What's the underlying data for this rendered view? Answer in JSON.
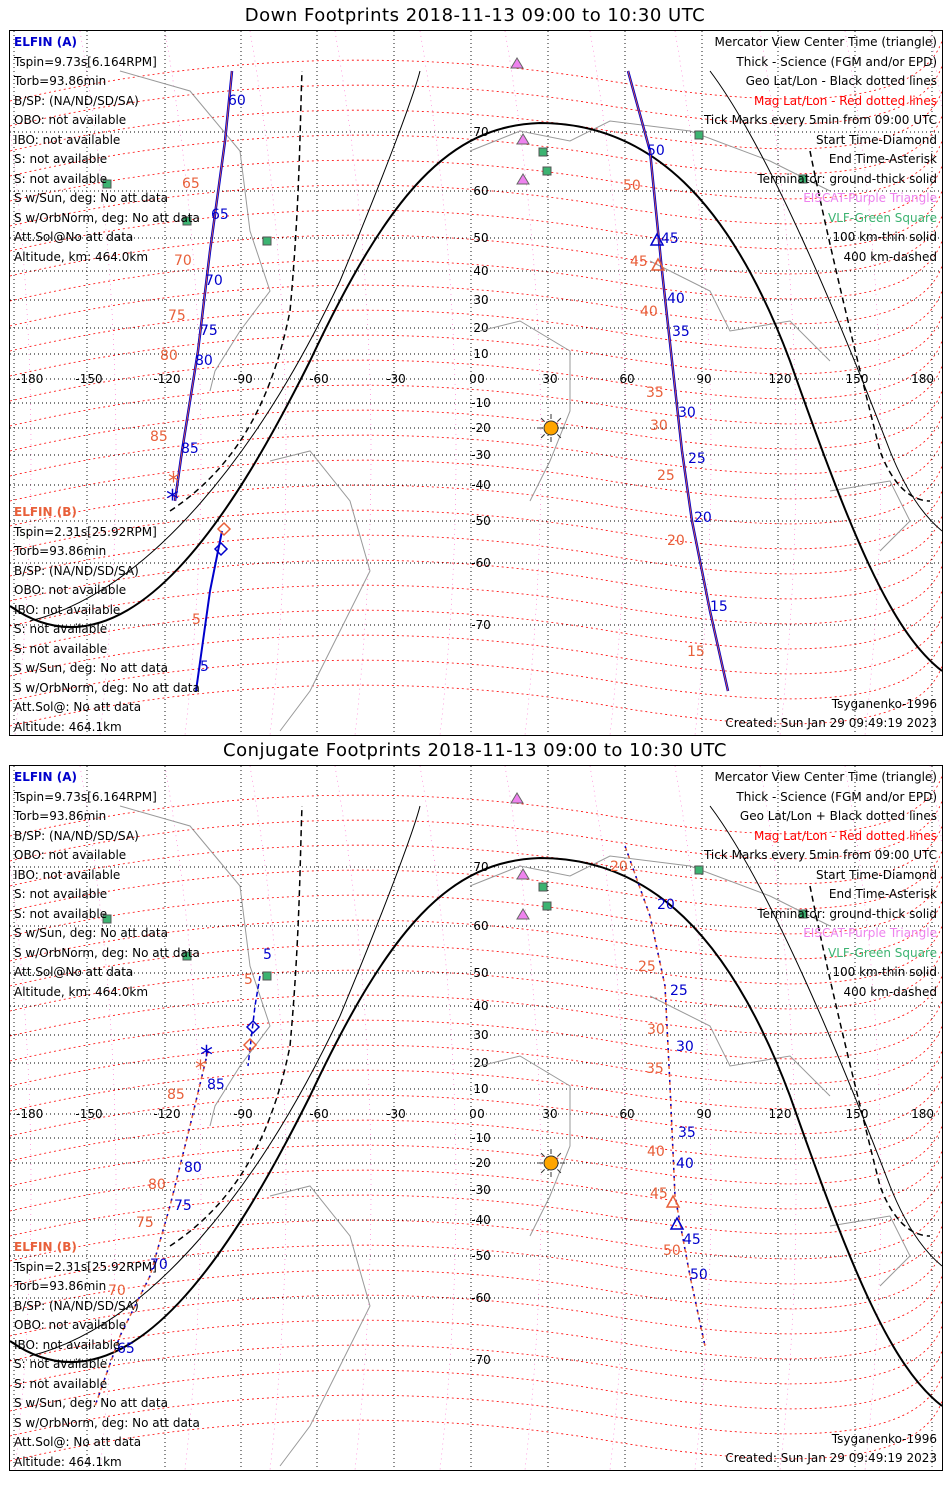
{
  "panels": [
    {
      "title": "Down Footprints 2018-11-13 09:00 to 10:30 UTC",
      "sc_a": {
        "name": "ELFIN (A)",
        "lines": [
          "Tspin=9.73s[6.164RPM]",
          "Torb=93.86min",
          "B/SP: (NA/ND/SD/SA)",
          "OBO: not available",
          "IBO: not available",
          "S: not available",
          "S: not available",
          "S w/Sun, deg: No att data",
          "S w/OrbNorm, deg: No att data",
          "Att.Sol@No att data",
          "Altitude, km: 464.0km"
        ]
      },
      "sc_b": {
        "name": "ELFIN (B)",
        "lines": [
          "Tspin=2.31s[25.92RPM]",
          "Torb=93.86min",
          "B/SP: (NA/ND/SD/SA)",
          "OBO: not available",
          "IBO: not available",
          "S: not available",
          "S: not available",
          "S w/Sun, deg: No att data",
          "S w/OrbNorm, deg: No att data",
          "Att.Sol@: No att data",
          "Altitude: 464.1km"
        ]
      },
      "tick_a_left": [
        "60",
        "65",
        "70",
        "75",
        "80",
        "85"
      ],
      "tick_b_left": [
        "65",
        "70",
        "75",
        "80",
        "85"
      ],
      "tick_a_right": [
        "50",
        "45",
        "40",
        "35",
        "30",
        "25",
        "20",
        "15"
      ],
      "tick_b_right": [
        "50",
        "45",
        "40",
        "35",
        "30",
        "25",
        "20",
        "15"
      ],
      "tick_b_extra": [
        "5"
      ],
      "tick_a_extra": [
        "5"
      ]
    },
    {
      "title": "Conjugate Footprints 2018-11-13 09:00 to 10:30 UTC",
      "sc_a": {
        "name": "ELFIN (A)",
        "lines": [
          "Tspin=9.73s[6.164RPM]",
          "Torb=93.86min",
          "B/SP: (NA/ND/SD/SA)",
          "OBO: not available",
          "IBO: not available",
          "S: not available",
          "S: not available",
          "S w/Sun, deg: No att data",
          "S w/OrbNorm, deg: No att data",
          "Att.Sol@No att data",
          "Altitude, km: 464.0km"
        ]
      },
      "sc_b": {
        "name": "ELFIN (B)",
        "lines": [
          "Tspin=2.31s[25.92RPM]",
          "Torb=93.86min",
          "B/SP: (NA/ND/SD/SA)",
          "OBO: not available",
          "IBO: not available",
          "S: not available",
          "S: not available",
          "S w/Sun, deg: No att data",
          "S w/OrbNorm, deg: No att data",
          "Att.Sol@: No att data",
          "Altitude: 464.1km"
        ]
      },
      "tick_a_left": [
        "5",
        "85",
        "80",
        "75",
        "70",
        "65"
      ],
      "tick_b_left": [
        "5",
        "85",
        "80",
        "75",
        "70"
      ],
      "tick_a_right": [
        "20",
        "25",
        "30",
        "35",
        "40",
        "45",
        "50"
      ],
      "tick_b_right": [
        "20",
        "25",
        "30",
        "35",
        "40",
        "45",
        "50"
      ],
      "tick_b_extra": [],
      "tick_a_extra": []
    }
  ],
  "legend": {
    "l1": "Mercator View Center Time (triangle)",
    "l2": "Thick - Science (FGM and/or EPD)",
    "l3a": "Geo Lat/Lon - Black dotted lines",
    "l3b": "Geo Lat/Lon + Black dotted lines",
    "l4": "Mag Lat/Lon - Red dotted lines",
    "l5": "Tick Marks every 5min from 09:00 UTC",
    "l6": "Start Time-Diamond",
    "l7": "End Time-Asterisk",
    "l8": "Terminator: ground-thick solid",
    "l9": "EISCAT-Purple Triangle",
    "l10": "VLF-Green Square",
    "l11": "100 km-thin solid",
    "l12": "400 km-dashed"
  },
  "model": "Tsyganenko-1996",
  "created": "Created: Sun Jan 29 09:49:19 2023",
  "lon_labels": [
    "-180",
    "-150",
    "-120",
    "-90",
    "-60",
    "-30",
    "0",
    "30",
    "60",
    "90",
    "120",
    "150",
    "180"
  ],
  "lat_labels": [
    "70",
    "60",
    "50",
    "40",
    "30",
    "20",
    "10",
    "0",
    "-10",
    "-20",
    "-30",
    "-40",
    "-50",
    "-60",
    "-70"
  ],
  "colors": {
    "sc_a": "#0000cc",
    "sc_b": "#e8603a",
    "mag_grid": "#ff0000",
    "eiscat": "#ee82ee",
    "vlf": "#3cb371",
    "sun": "#ffa500"
  }
}
